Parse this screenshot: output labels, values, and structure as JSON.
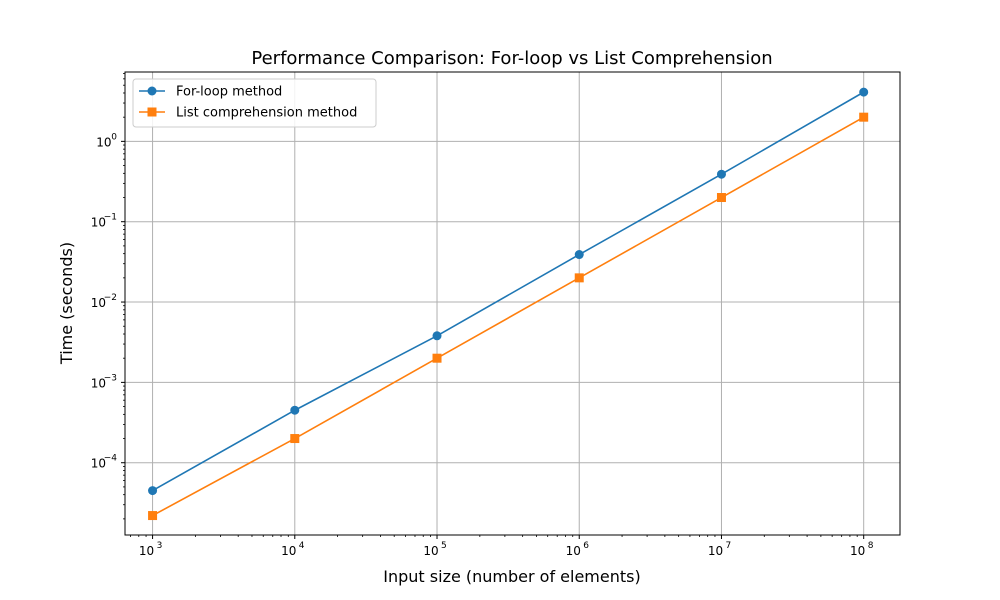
{
  "chart_data": {
    "type": "line",
    "title": "Performance Comparison: For-loop vs List Comprehension",
    "xlabel": "Input size (number of elements)",
    "ylabel": "Time (seconds)",
    "xscale": "log",
    "yscale": "log",
    "x": [
      1000,
      10000,
      100000,
      1000000,
      10000000,
      100000000
    ],
    "x_ticks": [
      {
        "value": 1000,
        "base": "10",
        "exp": "3"
      },
      {
        "value": 10000,
        "base": "10",
        "exp": "4"
      },
      {
        "value": 100000,
        "base": "10",
        "exp": "5"
      },
      {
        "value": 1000000,
        "base": "10",
        "exp": "6"
      },
      {
        "value": 10000000,
        "base": "10",
        "exp": "7"
      },
      {
        "value": 100000000,
        "base": "10",
        "exp": "8"
      }
    ],
    "y_ticks": [
      {
        "value": 0.0001,
        "base": "10",
        "exp": "−4"
      },
      {
        "value": 0.001,
        "base": "10",
        "exp": "−3"
      },
      {
        "value": 0.01,
        "base": "10",
        "exp": "−2"
      },
      {
        "value": 0.1,
        "base": "10",
        "exp": "−1"
      },
      {
        "value": 1,
        "base": "10",
        "exp": "0"
      }
    ],
    "xlim": [
      640,
      180000000
    ],
    "ylim": [
      1.26e-05,
      7.3
    ],
    "grid": true,
    "legend_position": "top-left",
    "series": [
      {
        "name": "For-loop method",
        "marker": "circle",
        "color": "#1f77b4",
        "values": [
          4.5e-05,
          0.00045,
          0.0038,
          0.039,
          0.39,
          4.1
        ]
      },
      {
        "name": "List comprehension method",
        "marker": "square",
        "color": "#ff7f0e",
        "values": [
          2.2e-05,
          0.0002,
          0.002,
          0.02,
          0.2,
          2.0
        ]
      }
    ]
  }
}
